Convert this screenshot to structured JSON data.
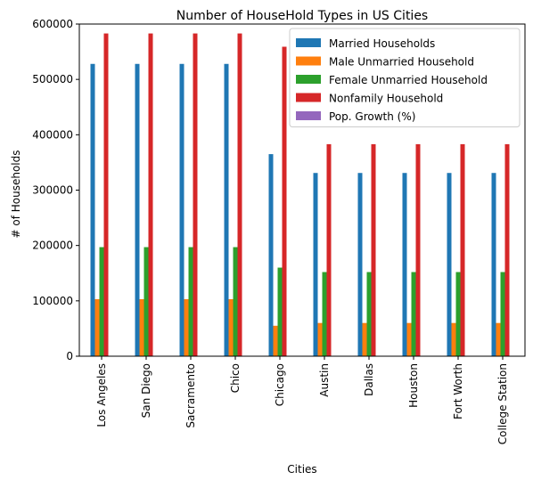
{
  "chart_data": {
    "type": "bar",
    "title": "Number of HouseHold Types in US Cities",
    "xlabel": "Cities",
    "ylabel": "# of Households",
    "ylim": [
      0,
      600000
    ],
    "yticks": [
      0,
      100000,
      200000,
      300000,
      400000,
      500000,
      600000
    ],
    "categories": [
      "Los Angeles",
      "San Diego",
      "Sacramento",
      "Chico",
      "Chicago",
      "Austin",
      "Dallas",
      "Houston",
      "Fort Worth",
      "College Station"
    ],
    "series": [
      {
        "name": "Married Households",
        "color": "#1f77b4",
        "values": [
          528000,
          528000,
          528000,
          528000,
          365000,
          331000,
          331000,
          331000,
          331000,
          331000
        ]
      },
      {
        "name": "Male Unmarried Household",
        "color": "#ff7f0e",
        "values": [
          103000,
          103000,
          103000,
          103000,
          55000,
          60000,
          60000,
          60000,
          60000,
          60000
        ]
      },
      {
        "name": "Female Unmarried Household",
        "color": "#2ca02c",
        "values": [
          197000,
          197000,
          197000,
          197000,
          160000,
          152000,
          152000,
          152000,
          152000,
          152000
        ]
      },
      {
        "name": "Nonfamily Household",
        "color": "#d62728",
        "values": [
          583000,
          583000,
          583000,
          583000,
          559000,
          383000,
          383000,
          383000,
          383000,
          383000
        ]
      },
      {
        "name": "Pop. Growth (%)",
        "color": "#9467bd",
        "values": [
          0,
          0,
          0,
          0,
          0,
          0,
          0,
          0,
          0,
          0
        ]
      }
    ],
    "legend": "top-right",
    "grid": false
  }
}
